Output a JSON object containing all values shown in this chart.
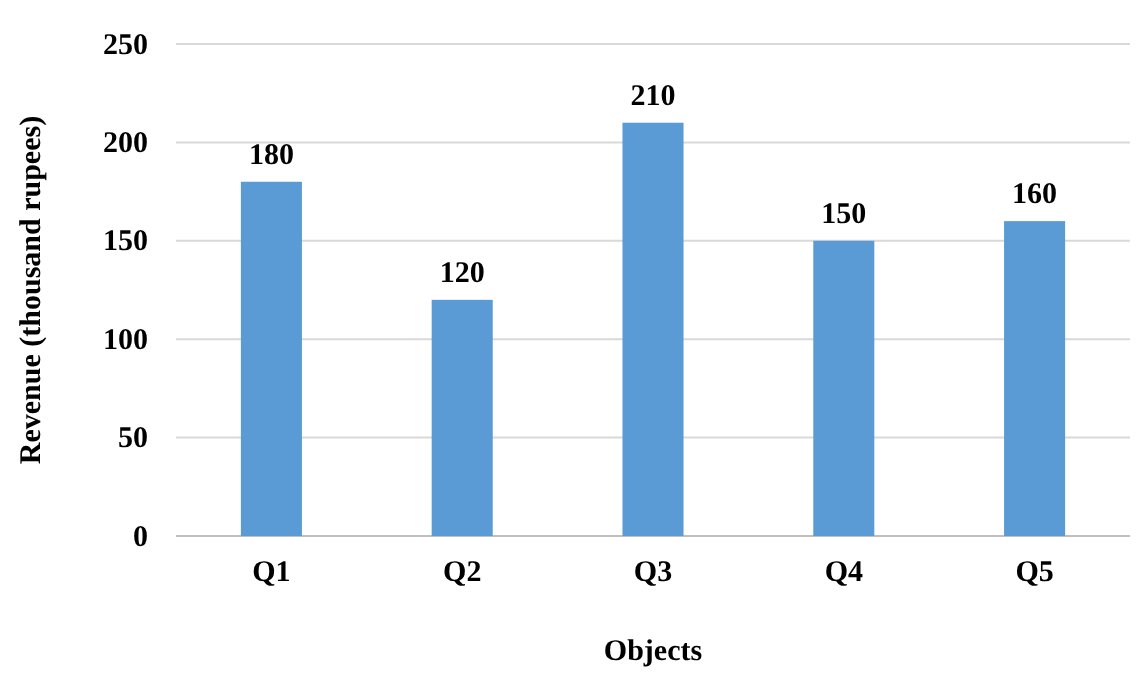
{
  "chart_data": {
    "type": "bar",
    "xlabel": "Objects",
    "ylabel": "Revenue (thousand rupees)",
    "categories": [
      "Q1",
      "Q2",
      "Q3",
      "Q4",
      "Q5"
    ],
    "values": [
      180,
      120,
      210,
      150,
      160
    ],
    "color": "#5b9bd5",
    "ylim": [
      0,
      250
    ],
    "yticks": [
      0,
      50,
      100,
      150,
      200,
      250
    ],
    "grid": "y",
    "data_labels": true
  }
}
